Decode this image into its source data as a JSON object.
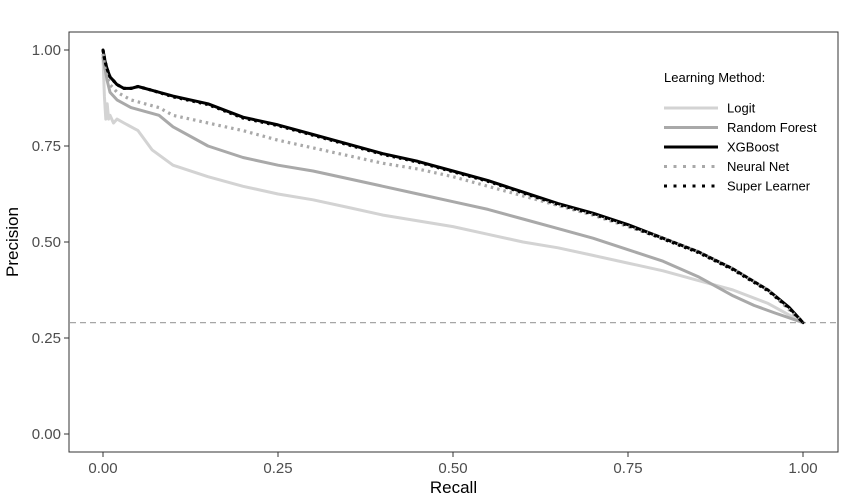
{
  "chart_data": {
    "type": "line",
    "xlabel": "Recall",
    "ylabel": "Precision",
    "xlim": [
      0,
      1
    ],
    "ylim": [
      0,
      1
    ],
    "x_ticks": [
      "0.00",
      "0.25",
      "0.50",
      "0.75",
      "1.00"
    ],
    "y_ticks": [
      "0.00",
      "0.25",
      "0.50",
      "0.75",
      "1.00"
    ],
    "grid": false,
    "reference_line": {
      "y": 0.29,
      "style": "dashed",
      "color": "#a6a6a6"
    },
    "legend": {
      "title": "Learning Method:",
      "placement": "top-right"
    },
    "series": [
      {
        "name": "Logit",
        "color": "#d3d3d3",
        "dash": "solid",
        "x": [
          0.0,
          0.002,
          0.004,
          0.006,
          0.008,
          0.01,
          0.015,
          0.02,
          0.03,
          0.05,
          0.07,
          0.1,
          0.15,
          0.2,
          0.25,
          0.3,
          0.35,
          0.4,
          0.45,
          0.5,
          0.55,
          0.6,
          0.65,
          0.7,
          0.75,
          0.8,
          0.85,
          0.9,
          0.95,
          1.0
        ],
        "y": [
          0.98,
          0.88,
          0.82,
          0.86,
          0.82,
          0.83,
          0.81,
          0.82,
          0.81,
          0.79,
          0.74,
          0.7,
          0.67,
          0.645,
          0.625,
          0.61,
          0.59,
          0.57,
          0.555,
          0.54,
          0.52,
          0.5,
          0.485,
          0.465,
          0.445,
          0.425,
          0.4,
          0.375,
          0.34,
          0.29
        ]
      },
      {
        "name": "Random Forest",
        "color": "#a9a9a9",
        "dash": "solid",
        "x": [
          0.0,
          0.003,
          0.006,
          0.01,
          0.02,
          0.04,
          0.06,
          0.08,
          0.1,
          0.15,
          0.2,
          0.25,
          0.3,
          0.35,
          0.4,
          0.45,
          0.5,
          0.55,
          0.6,
          0.65,
          0.7,
          0.75,
          0.8,
          0.85,
          0.88,
          0.9,
          0.93,
          0.96,
          1.0
        ],
        "y": [
          0.98,
          0.95,
          0.92,
          0.89,
          0.87,
          0.85,
          0.84,
          0.83,
          0.8,
          0.75,
          0.72,
          0.7,
          0.685,
          0.665,
          0.645,
          0.625,
          0.605,
          0.585,
          0.56,
          0.535,
          0.51,
          0.48,
          0.45,
          0.41,
          0.38,
          0.36,
          0.335,
          0.315,
          0.29
        ]
      },
      {
        "name": "XGBoost",
        "color": "#000000",
        "dash": "solid",
        "x": [
          0.0,
          0.003,
          0.006,
          0.01,
          0.015,
          0.02,
          0.03,
          0.04,
          0.05,
          0.07,
          0.1,
          0.15,
          0.2,
          0.25,
          0.3,
          0.35,
          0.4,
          0.45,
          0.5,
          0.55,
          0.6,
          0.65,
          0.7,
          0.75,
          0.8,
          0.85,
          0.9,
          0.95,
          0.98,
          1.0
        ],
        "y": [
          1.0,
          0.97,
          0.95,
          0.93,
          0.92,
          0.91,
          0.9,
          0.9,
          0.905,
          0.895,
          0.88,
          0.86,
          0.825,
          0.805,
          0.78,
          0.755,
          0.73,
          0.71,
          0.685,
          0.66,
          0.63,
          0.6,
          0.575,
          0.545,
          0.51,
          0.475,
          0.43,
          0.375,
          0.33,
          0.29
        ]
      },
      {
        "name": "Neural Net",
        "color": "#a9a9a9",
        "dash": "dotted",
        "x": [
          0.0,
          0.003,
          0.006,
          0.01,
          0.02,
          0.04,
          0.06,
          0.08,
          0.1,
          0.15,
          0.2,
          0.25,
          0.3,
          0.35,
          0.4,
          0.45,
          0.5,
          0.55,
          0.6,
          0.65,
          0.7,
          0.75,
          0.8,
          0.85,
          0.9,
          0.95,
          1.0
        ],
        "y": [
          0.99,
          0.95,
          0.93,
          0.91,
          0.89,
          0.87,
          0.86,
          0.85,
          0.83,
          0.81,
          0.79,
          0.765,
          0.745,
          0.725,
          0.705,
          0.69,
          0.67,
          0.645,
          0.62,
          0.595,
          0.57,
          0.54,
          0.51,
          0.475,
          0.43,
          0.375,
          0.29
        ]
      },
      {
        "name": "Super Learner",
        "color": "#000000",
        "dash": "dotted",
        "x": [
          0.0,
          0.003,
          0.006,
          0.01,
          0.015,
          0.02,
          0.03,
          0.04,
          0.05,
          0.07,
          0.1,
          0.15,
          0.2,
          0.25,
          0.3,
          0.35,
          0.4,
          0.45,
          0.5,
          0.55,
          0.6,
          0.65,
          0.7,
          0.75,
          0.8,
          0.85,
          0.9,
          0.95,
          0.98,
          1.0
        ],
        "y": [
          1.0,
          0.97,
          0.95,
          0.93,
          0.92,
          0.91,
          0.9,
          0.9,
          0.905,
          0.895,
          0.878,
          0.858,
          0.823,
          0.803,
          0.778,
          0.753,
          0.728,
          0.708,
          0.683,
          0.658,
          0.628,
          0.598,
          0.573,
          0.543,
          0.508,
          0.473,
          0.428,
          0.373,
          0.328,
          0.29
        ]
      }
    ]
  }
}
